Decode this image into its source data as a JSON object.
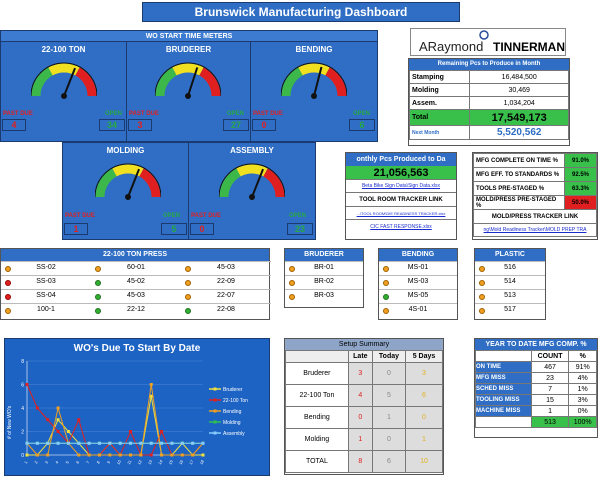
{
  "title": "Brunswick Manufacturing Dashboard",
  "wo_start": {
    "header": "WO START TIME METERS",
    "past_due_label": "PAST DUE",
    "open_label": "OPEN",
    "meters_top": [
      {
        "name": "22-100 TON",
        "past_due": "4",
        "open": "34",
        "needle": 0.62
      },
      {
        "name": "BRUDERER",
        "past_due": "3",
        "open": "27",
        "needle": 0.6
      },
      {
        "name": "BENDING",
        "past_due": "0",
        "open": "6",
        "needle": 0.58
      }
    ],
    "meters_bottom": [
      {
        "name": "MOLDING",
        "past_due": "1",
        "open": "5",
        "needle": 0.62
      },
      {
        "name": "ASSEMBLY",
        "past_due": "0",
        "open": "23",
        "needle": 0.62
      }
    ]
  },
  "logo": {
    "brand1": "ARaymond",
    "brand2": "TINNERMAN"
  },
  "remaining": {
    "title": "Remaining Pcs to Produce in Month",
    "rows": [
      {
        "label": "Stamping",
        "value": "16,484,500"
      },
      {
        "label": "Molding",
        "value": "30,469"
      },
      {
        "label": "Assem.",
        "value": "1,034,204"
      }
    ],
    "total_label": "Total",
    "total_value": "17,549,173",
    "next_label": "Next Month",
    "next_value": "5,520,562"
  },
  "monthly": {
    "title": "onthly Pcs Produced to Da",
    "value": "21,056,563",
    "link1": "Beta Bike Sign Data\\Sign Data.xlsx",
    "link2": "TOOL ROOM TRACKER LINK",
    "link3": "...\\TOOL ROOM\\DIE READINESS TRACKER.xlsx",
    "link4": "CIC FAST RESPONSE.xlsx"
  },
  "mfg": {
    "rows": [
      {
        "label": "MFG COMPLETE ON TIME %",
        "value": "91.0%",
        "color": "#38c04a"
      },
      {
        "label": "MFG EFF. TO STANDARDS %",
        "value": "92.5%",
        "color": "#38c04a"
      },
      {
        "label": "TOOLS PRE-STAGED %",
        "value": "63.3%",
        "color": "#38c04a"
      },
      {
        "label": "MOLD/PRESS PRE-STAGED %",
        "value": "50.0%",
        "color": "#e02020"
      }
    ],
    "link_title": "MOLD/PRESS TRACKER LINK",
    "link": "ng\\Mold Readiness Tracker\\MOLD PREP TRA"
  },
  "press": {
    "title": "22-100 TON PRESS",
    "cols": [
      [
        {
          "dot": "o",
          "label": "SS-02"
        },
        {
          "dot": "r",
          "label": "SS-03"
        },
        {
          "dot": "r",
          "label": "SS-04"
        },
        {
          "dot": "o",
          "label": "100-1"
        }
      ],
      [
        {
          "dot": "o",
          "label": "60-01"
        },
        {
          "dot": "g",
          "label": "45-02"
        },
        {
          "dot": "g",
          "label": "45-03"
        },
        {
          "dot": "g",
          "label": "22-12"
        }
      ],
      [
        {
          "dot": "o",
          "label": "45-03"
        },
        {
          "dot": "o",
          "label": "22-09"
        },
        {
          "dot": "o",
          "label": "22-07"
        },
        {
          "dot": "g",
          "label": "22-08"
        }
      ]
    ]
  },
  "bruderer": {
    "title": "BRUDERER",
    "rows": [
      {
        "dot": "o",
        "label": "BR-01"
      },
      {
        "dot": "o",
        "label": "BR-02"
      },
      {
        "dot": "o",
        "label": "BR-03"
      }
    ]
  },
  "bending": {
    "title": "BENDING",
    "rows": [
      {
        "dot": "o",
        "label": "MS-01"
      },
      {
        "dot": "o",
        "label": "MS-03"
      },
      {
        "dot": "g",
        "label": "MS-05"
      },
      {
        "dot": "o",
        "label": "4S-01"
      }
    ]
  },
  "plastic": {
    "title": "PLASTIC",
    "rows": [
      {
        "dot": "o",
        "label": "516"
      },
      {
        "dot": "o",
        "label": "514"
      },
      {
        "dot": "o",
        "label": "513"
      },
      {
        "dot": "o",
        "label": "517"
      }
    ]
  },
  "setup": {
    "title": "Setup Summary",
    "headers": [
      "",
      "Late",
      "Today",
      "5 Days"
    ],
    "rows": [
      {
        "label": "Bruderer",
        "late": "3",
        "today": "0",
        "five": "3"
      },
      {
        "label": "22-100 Ton",
        "late": "4",
        "today": "5",
        "five": "6"
      },
      {
        "label": "Bending",
        "late": "0",
        "today": "1",
        "five": "0"
      },
      {
        "label": "Molding",
        "late": "1",
        "today": "0",
        "five": "1"
      }
    ],
    "total_label": "TOTAL",
    "total": {
      "late": "8",
      "today": "6",
      "five": "10"
    }
  },
  "ytd": {
    "title": "YEAR TO DATE MFG COMP. %",
    "headers": [
      "",
      "COUNT",
      "%"
    ],
    "rows": [
      {
        "label": "ON TIME",
        "count": "467",
        "pct": "91%"
      },
      {
        "label": "MFG MISS",
        "count": "23",
        "pct": "4%"
      },
      {
        "label": "SCHED MISS",
        "count": "7",
        "pct": "1%"
      },
      {
        "label": "TOOLING MISS",
        "count": "15",
        "pct": "3%"
      },
      {
        "label": "MACHINE MISS",
        "count": "1",
        "pct": "0%"
      }
    ],
    "total_count": "513",
    "total_pct": "100%"
  },
  "chart_data": {
    "type": "line",
    "title": "WO's Due To Start By Date",
    "ylabel": "# of New WO's",
    "xlabel": "",
    "ylim": [
      0,
      8
    ],
    "categories": [
      "1",
      "2",
      "3",
      "4",
      "5",
      "6",
      "7",
      "8",
      "9",
      "10",
      "11",
      "12",
      "13",
      "14",
      "15",
      "16",
      "17",
      "18"
    ],
    "series": [
      {
        "name": "Bruderer",
        "color": "#f0e040",
        "values": [
          0,
          0,
          1,
          3,
          2,
          1,
          0,
          0,
          1,
          0,
          0,
          0,
          5,
          0,
          0,
          1,
          0,
          0
        ]
      },
      {
        "name": "22-100 Ton",
        "color": "#e02020",
        "values": [
          6,
          4,
          3,
          2,
          1,
          3,
          0,
          0,
          1,
          0,
          2,
          0,
          0,
          2,
          0,
          0,
          0,
          1
        ]
      },
      {
        "name": "Bending",
        "color": "#f0a020",
        "values": [
          1,
          0,
          0,
          4,
          1,
          0,
          0,
          0,
          0,
          0,
          0,
          0,
          6,
          0,
          0,
          0,
          0,
          1
        ]
      },
      {
        "name": "Molding",
        "color": "#30c050",
        "values": [
          1,
          1,
          1,
          1,
          1,
          1,
          1,
          1,
          1,
          1,
          1,
          1,
          1,
          1,
          1,
          1,
          1,
          1
        ]
      },
      {
        "name": "Assembly",
        "color": "#88ccff",
        "values": [
          1,
          1,
          1,
          1,
          1,
          1,
          1,
          1,
          1,
          1,
          1,
          1,
          1,
          1,
          1,
          1,
          1,
          1
        ]
      }
    ]
  }
}
